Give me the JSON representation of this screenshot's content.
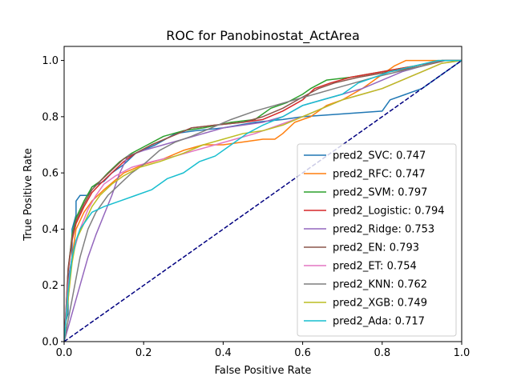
{
  "chart_data": {
    "type": "line",
    "title": "ROC for Panobinostat_ActArea",
    "xlabel": "False Positive Rate",
    "ylabel": "True Positive Rate",
    "xlim": [
      0,
      1
    ],
    "ylim": [
      0,
      1.05
    ],
    "xticks": [
      "0.0",
      "0.2",
      "0.4",
      "0.6",
      "0.8",
      "1.0"
    ],
    "yticks": [
      "0.0",
      "0.2",
      "0.4",
      "0.6",
      "0.8",
      "1.0"
    ],
    "grid": false,
    "legend_position": "lower-right",
    "diagonal": {
      "color": "#000080",
      "style": "dashed",
      "points": [
        [
          0,
          0
        ],
        [
          1,
          1
        ]
      ]
    },
    "series": [
      {
        "name": "pred2_SVC: 0.747",
        "color": "#1f77b4",
        "points": [
          [
            0,
            0
          ],
          [
            0,
            0.05
          ],
          [
            0.01,
            0.1
          ],
          [
            0.01,
            0.22
          ],
          [
            0.02,
            0.3
          ],
          [
            0.02,
            0.4
          ],
          [
            0.03,
            0.45
          ],
          [
            0.03,
            0.5
          ],
          [
            0.04,
            0.52
          ],
          [
            0.06,
            0.52
          ],
          [
            0.07,
            0.55
          ],
          [
            0.1,
            0.57
          ],
          [
            0.12,
            0.6
          ],
          [
            0.15,
            0.63
          ],
          [
            0.18,
            0.67
          ],
          [
            0.23,
            0.7
          ],
          [
            0.28,
            0.74
          ],
          [
            0.33,
            0.75
          ],
          [
            0.4,
            0.76
          ],
          [
            0.48,
            0.78
          ],
          [
            0.55,
            0.79
          ],
          [
            0.6,
            0.8
          ],
          [
            0.7,
            0.81
          ],
          [
            0.8,
            0.82
          ],
          [
            0.82,
            0.86
          ],
          [
            0.86,
            0.88
          ],
          [
            0.9,
            0.9
          ],
          [
            0.95,
            0.95
          ],
          [
            0.98,
            0.98
          ],
          [
            1,
            1
          ]
        ]
      },
      {
        "name": "pred2_RFC: 0.747",
        "color": "#ff7f0e",
        "points": [
          [
            0,
            0
          ],
          [
            0.01,
            0.15
          ],
          [
            0.02,
            0.3
          ],
          [
            0.03,
            0.4
          ],
          [
            0.05,
            0.46
          ],
          [
            0.07,
            0.5
          ],
          [
            0.1,
            0.54
          ],
          [
            0.15,
            0.6
          ],
          [
            0.2,
            0.63
          ],
          [
            0.25,
            0.65
          ],
          [
            0.3,
            0.68
          ],
          [
            0.35,
            0.7
          ],
          [
            0.4,
            0.7
          ],
          [
            0.45,
            0.71
          ],
          [
            0.5,
            0.72
          ],
          [
            0.53,
            0.72
          ],
          [
            0.55,
            0.74
          ],
          [
            0.58,
            0.78
          ],
          [
            0.62,
            0.8
          ],
          [
            0.66,
            0.84
          ],
          [
            0.7,
            0.86
          ],
          [
            0.75,
            0.9
          ],
          [
            0.8,
            0.95
          ],
          [
            0.83,
            0.98
          ],
          [
            0.86,
            1.0
          ],
          [
            1,
            1
          ]
        ]
      },
      {
        "name": "pred2_SVM: 0.797",
        "color": "#2ca02c",
        "points": [
          [
            0,
            0
          ],
          [
            0.005,
            0.1
          ],
          [
            0.01,
            0.25
          ],
          [
            0.02,
            0.38
          ],
          [
            0.03,
            0.44
          ],
          [
            0.05,
            0.5
          ],
          [
            0.07,
            0.55
          ],
          [
            0.09,
            0.57
          ],
          [
            0.11,
            0.6
          ],
          [
            0.14,
            0.64
          ],
          [
            0.17,
            0.67
          ],
          [
            0.21,
            0.7
          ],
          [
            0.25,
            0.73
          ],
          [
            0.3,
            0.75
          ],
          [
            0.35,
            0.76
          ],
          [
            0.42,
            0.78
          ],
          [
            0.48,
            0.79
          ],
          [
            0.52,
            0.83
          ],
          [
            0.56,
            0.85
          ],
          [
            0.6,
            0.88
          ],
          [
            0.62,
            0.9
          ],
          [
            0.66,
            0.93
          ],
          [
            0.72,
            0.94
          ],
          [
            0.8,
            0.96
          ],
          [
            0.88,
            0.98
          ],
          [
            0.95,
            1.0
          ],
          [
            1,
            1
          ]
        ]
      },
      {
        "name": "pred2_Logistic: 0.794",
        "color": "#d62728",
        "points": [
          [
            0,
            0
          ],
          [
            0.005,
            0.12
          ],
          [
            0.01,
            0.25
          ],
          [
            0.02,
            0.36
          ],
          [
            0.03,
            0.42
          ],
          [
            0.05,
            0.48
          ],
          [
            0.07,
            0.53
          ],
          [
            0.09,
            0.56
          ],
          [
            0.12,
            0.6
          ],
          [
            0.15,
            0.64
          ],
          [
            0.18,
            0.67
          ],
          [
            0.22,
            0.7
          ],
          [
            0.27,
            0.73
          ],
          [
            0.32,
            0.76
          ],
          [
            0.38,
            0.77
          ],
          [
            0.45,
            0.78
          ],
          [
            0.5,
            0.79
          ],
          [
            0.55,
            0.82
          ],
          [
            0.6,
            0.86
          ],
          [
            0.63,
            0.9
          ],
          [
            0.67,
            0.92
          ],
          [
            0.72,
            0.94
          ],
          [
            0.8,
            0.96
          ],
          [
            0.88,
            0.98
          ],
          [
            0.95,
            1.0
          ],
          [
            1,
            1
          ]
        ]
      },
      {
        "name": "pred2_Ridge: 0.753",
        "color": "#9467bd",
        "points": [
          [
            0,
            0
          ],
          [
            0.02,
            0.1
          ],
          [
            0.04,
            0.2
          ],
          [
            0.06,
            0.3
          ],
          [
            0.08,
            0.38
          ],
          [
            0.1,
            0.45
          ],
          [
            0.12,
            0.52
          ],
          [
            0.14,
            0.6
          ],
          [
            0.16,
            0.66
          ],
          [
            0.2,
            0.68
          ],
          [
            0.25,
            0.7
          ],
          [
            0.3,
            0.72
          ],
          [
            0.35,
            0.74
          ],
          [
            0.4,
            0.76
          ],
          [
            0.45,
            0.77
          ],
          [
            0.5,
            0.78
          ],
          [
            0.55,
            0.8
          ],
          [
            0.6,
            0.84
          ],
          [
            0.65,
            0.86
          ],
          [
            0.7,
            0.88
          ],
          [
            0.75,
            0.9
          ],
          [
            0.8,
            0.93
          ],
          [
            0.85,
            0.96
          ],
          [
            0.9,
            0.98
          ],
          [
            0.95,
            1.0
          ],
          [
            1,
            1
          ]
        ]
      },
      {
        "name": "pred2_EN: 0.793",
        "color": "#8c564b",
        "points": [
          [
            0,
            0
          ],
          [
            0.005,
            0.12
          ],
          [
            0.01,
            0.26
          ],
          [
            0.02,
            0.37
          ],
          [
            0.03,
            0.43
          ],
          [
            0.05,
            0.49
          ],
          [
            0.07,
            0.54
          ],
          [
            0.09,
            0.57
          ],
          [
            0.12,
            0.61
          ],
          [
            0.15,
            0.65
          ],
          [
            0.18,
            0.67
          ],
          [
            0.22,
            0.7
          ],
          [
            0.27,
            0.73
          ],
          [
            0.32,
            0.76
          ],
          [
            0.38,
            0.77
          ],
          [
            0.45,
            0.78
          ],
          [
            0.5,
            0.8
          ],
          [
            0.55,
            0.83
          ],
          [
            0.6,
            0.87
          ],
          [
            0.64,
            0.9
          ],
          [
            0.68,
            0.92
          ],
          [
            0.74,
            0.94
          ],
          [
            0.82,
            0.96
          ],
          [
            0.9,
            0.98
          ],
          [
            0.96,
            1.0
          ],
          [
            1,
            1
          ]
        ]
      },
      {
        "name": "pred2_ET: 0.754",
        "color": "#e377c2",
        "points": [
          [
            0,
            0
          ],
          [
            0.005,
            0.1
          ],
          [
            0.01,
            0.2
          ],
          [
            0.02,
            0.3
          ],
          [
            0.04,
            0.4
          ],
          [
            0.06,
            0.47
          ],
          [
            0.08,
            0.52
          ],
          [
            0.1,
            0.56
          ],
          [
            0.13,
            0.59
          ],
          [
            0.17,
            0.62
          ],
          [
            0.22,
            0.64
          ],
          [
            0.28,
            0.66
          ],
          [
            0.33,
            0.68
          ],
          [
            0.38,
            0.7
          ],
          [
            0.43,
            0.72
          ],
          [
            0.48,
            0.74
          ],
          [
            0.52,
            0.76
          ],
          [
            0.56,
            0.78
          ],
          [
            0.6,
            0.8
          ],
          [
            0.65,
            0.83
          ],
          [
            0.7,
            0.86
          ],
          [
            0.75,
            0.88
          ],
          [
            0.8,
            0.9
          ],
          [
            0.85,
            0.93
          ],
          [
            0.9,
            0.96
          ],
          [
            0.95,
            0.99
          ],
          [
            1,
            1
          ]
        ]
      },
      {
        "name": "pred2_KNN: 0.762",
        "color": "#7f7f7f",
        "points": [
          [
            0,
            0
          ],
          [
            0.02,
            0.15
          ],
          [
            0.04,
            0.3
          ],
          [
            0.06,
            0.4
          ],
          [
            0.08,
            0.46
          ],
          [
            0.11,
            0.52
          ],
          [
            0.14,
            0.56
          ],
          [
            0.17,
            0.6
          ],
          [
            0.2,
            0.63
          ],
          [
            0.24,
            0.68
          ],
          [
            0.28,
            0.71
          ],
          [
            0.32,
            0.73
          ],
          [
            0.37,
            0.76
          ],
          [
            0.42,
            0.79
          ],
          [
            0.48,
            0.82
          ],
          [
            0.53,
            0.84
          ],
          [
            0.58,
            0.86
          ],
          [
            0.63,
            0.88
          ],
          [
            0.68,
            0.9
          ],
          [
            0.73,
            0.92
          ],
          [
            0.78,
            0.94
          ],
          [
            0.84,
            0.96
          ],
          [
            0.9,
            0.98
          ],
          [
            0.95,
            1.0
          ],
          [
            1,
            1
          ]
        ]
      },
      {
        "name": "pred2_XGB: 0.749",
        "color": "#bcbd22",
        "points": [
          [
            0,
            0
          ],
          [
            0.01,
            0.15
          ],
          [
            0.02,
            0.28
          ],
          [
            0.03,
            0.36
          ],
          [
            0.05,
            0.42
          ],
          [
            0.07,
            0.48
          ],
          [
            0.09,
            0.52
          ],
          [
            0.12,
            0.56
          ],
          [
            0.15,
            0.59
          ],
          [
            0.19,
            0.62
          ],
          [
            0.24,
            0.64
          ],
          [
            0.3,
            0.67
          ],
          [
            0.35,
            0.7
          ],
          [
            0.4,
            0.72
          ],
          [
            0.45,
            0.74
          ],
          [
            0.5,
            0.75
          ],
          [
            0.55,
            0.77
          ],
          [
            0.6,
            0.8
          ],
          [
            0.65,
            0.83
          ],
          [
            0.7,
            0.86
          ],
          [
            0.75,
            0.88
          ],
          [
            0.8,
            0.9
          ],
          [
            0.85,
            0.93
          ],
          [
            0.9,
            0.96
          ],
          [
            0.95,
            0.99
          ],
          [
            1,
            1
          ]
        ]
      },
      {
        "name": "pred2_Ada: 0.717",
        "color": "#17becf",
        "points": [
          [
            0,
            0
          ],
          [
            0.005,
            0.08
          ],
          [
            0.01,
            0.18
          ],
          [
            0.02,
            0.3
          ],
          [
            0.03,
            0.36
          ],
          [
            0.04,
            0.4
          ],
          [
            0.05,
            0.42
          ],
          [
            0.07,
            0.46
          ],
          [
            0.1,
            0.48
          ],
          [
            0.14,
            0.5
          ],
          [
            0.18,
            0.52
          ],
          [
            0.22,
            0.54
          ],
          [
            0.26,
            0.58
          ],
          [
            0.3,
            0.6
          ],
          [
            0.34,
            0.64
          ],
          [
            0.38,
            0.66
          ],
          [
            0.42,
            0.7
          ],
          [
            0.46,
            0.74
          ],
          [
            0.5,
            0.77
          ],
          [
            0.55,
            0.8
          ],
          [
            0.6,
            0.84
          ],
          [
            0.65,
            0.86
          ],
          [
            0.7,
            0.88
          ],
          [
            0.74,
            0.92
          ],
          [
            0.78,
            0.94
          ],
          [
            0.82,
            0.96
          ],
          [
            0.88,
            0.98
          ],
          [
            0.94,
            1.0
          ],
          [
            1,
            1
          ]
        ]
      }
    ]
  }
}
